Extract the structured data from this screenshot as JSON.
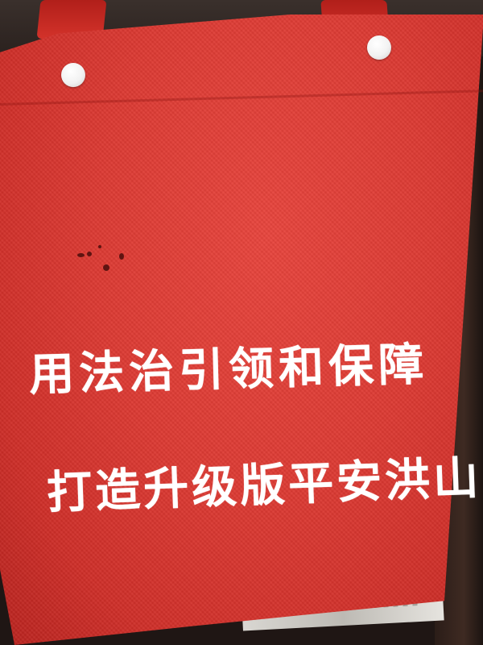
{
  "scene": {
    "subject": "red tote bag",
    "colors": {
      "bag_red": "#dc3a33",
      "text_white": "#ffffff",
      "rivet_white": "#f2f2f2"
    },
    "icons": [
      "rivet-icon",
      "rivet-icon"
    ]
  },
  "bag": {
    "slogan_line1": "用法治引领和保障",
    "slogan_line2": "打造升级版平安洪山"
  }
}
